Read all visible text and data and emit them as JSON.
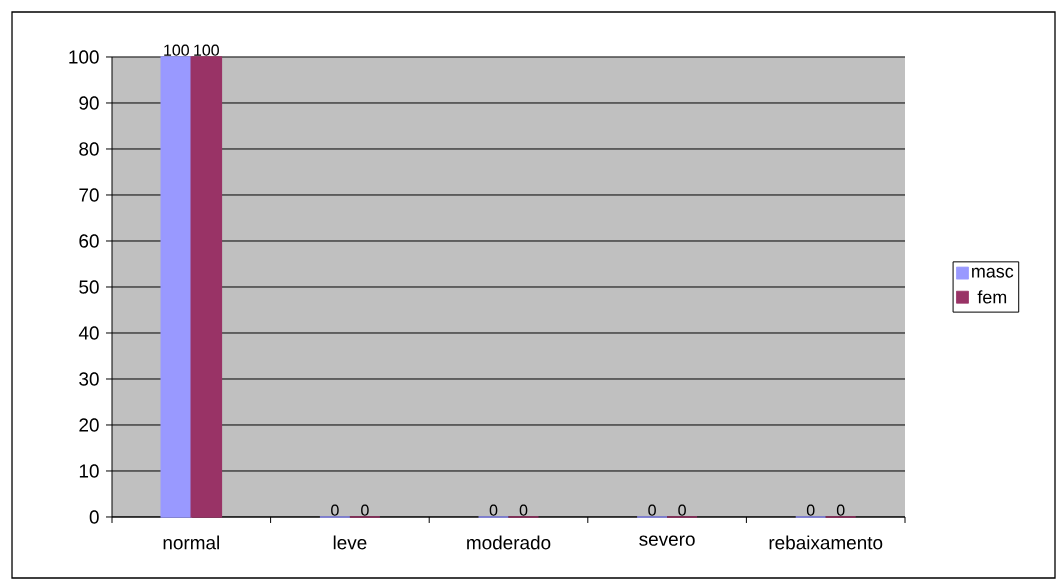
{
  "chart_data": {
    "type": "bar",
    "categories": [
      "normal",
      "leve",
      "moderado",
      "severo",
      "rebaixamento"
    ],
    "series": [
      {
        "name": "masc",
        "color": "#9999ff",
        "values": [
          100,
          0,
          0,
          0,
          0
        ]
      },
      {
        "name": "fem",
        "color": "#993366",
        "values": [
          100,
          0,
          0,
          0,
          0
        ]
      }
    ],
    "ylim": [
      0,
      100
    ],
    "yticks": [
      0,
      10,
      20,
      30,
      40,
      50,
      60,
      70,
      80,
      90,
      100
    ],
    "grid": "y",
    "legend": "right",
    "data_labels": true
  }
}
